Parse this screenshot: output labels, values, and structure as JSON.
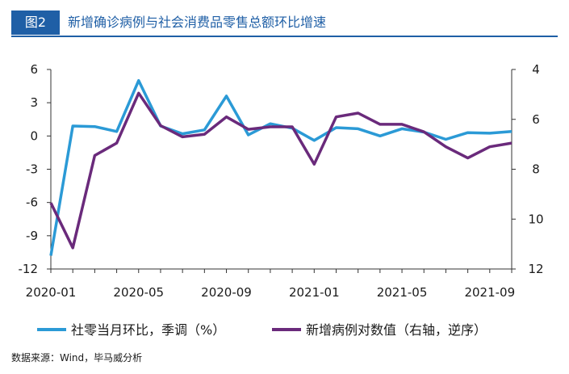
{
  "header": {
    "figure_label": "图2",
    "title": "新增确诊病例与社会消费品零售总额环比增速"
  },
  "source": "数据来源：Wind，毕马威分析",
  "colors": {
    "accent": "#1f5fa6",
    "series_1": "#2b9ad6",
    "series_2": "#6a2a7b",
    "axis": "#333333"
  },
  "chart_data": {
    "type": "line",
    "x": [
      "2020-01",
      "2020-02",
      "2020-03",
      "2020-04",
      "2020-05",
      "2020-06",
      "2020-07",
      "2020-08",
      "2020-09",
      "2020-10",
      "2020-11",
      "2020-12",
      "2021-01",
      "2021-02",
      "2021-03",
      "2021-04",
      "2021-05",
      "2021-06",
      "2021-07",
      "2021-08",
      "2021-09",
      "2021-10"
    ],
    "x_tick_labels": [
      "2020-01",
      "2020-05",
      "2020-09",
      "2021-01",
      "2021-05",
      "2021-09"
    ],
    "y_left": {
      "ticks": [
        "6",
        "3",
        "0",
        "-3",
        "-6",
        "-9",
        "-12"
      ],
      "ylim": [
        -12,
        6
      ]
    },
    "y_right": {
      "ticks": [
        "4",
        "6",
        "8",
        "10",
        "12"
      ],
      "ylim": [
        4,
        12
      ],
      "inverted": true
    },
    "series": [
      {
        "name": "社零当月环比，季调（%）",
        "axis": "left",
        "values": [
          -10.8,
          0.9,
          0.85,
          0.4,
          5.0,
          0.9,
          0.2,
          0.55,
          3.6,
          0.1,
          1.1,
          0.7,
          -0.4,
          0.75,
          0.65,
          0.0,
          0.65,
          0.35,
          -0.3,
          0.3,
          0.25,
          0.4
        ]
      },
      {
        "name": "新增病例对数值（右轴，逆序）",
        "axis": "right",
        "values": [
          9.35,
          11.15,
          7.45,
          6.95,
          4.95,
          6.25,
          6.7,
          6.6,
          5.9,
          6.4,
          6.3,
          6.3,
          7.8,
          5.9,
          5.75,
          6.2,
          6.2,
          6.5,
          7.1,
          7.55,
          7.1,
          6.95
        ]
      }
    ]
  }
}
